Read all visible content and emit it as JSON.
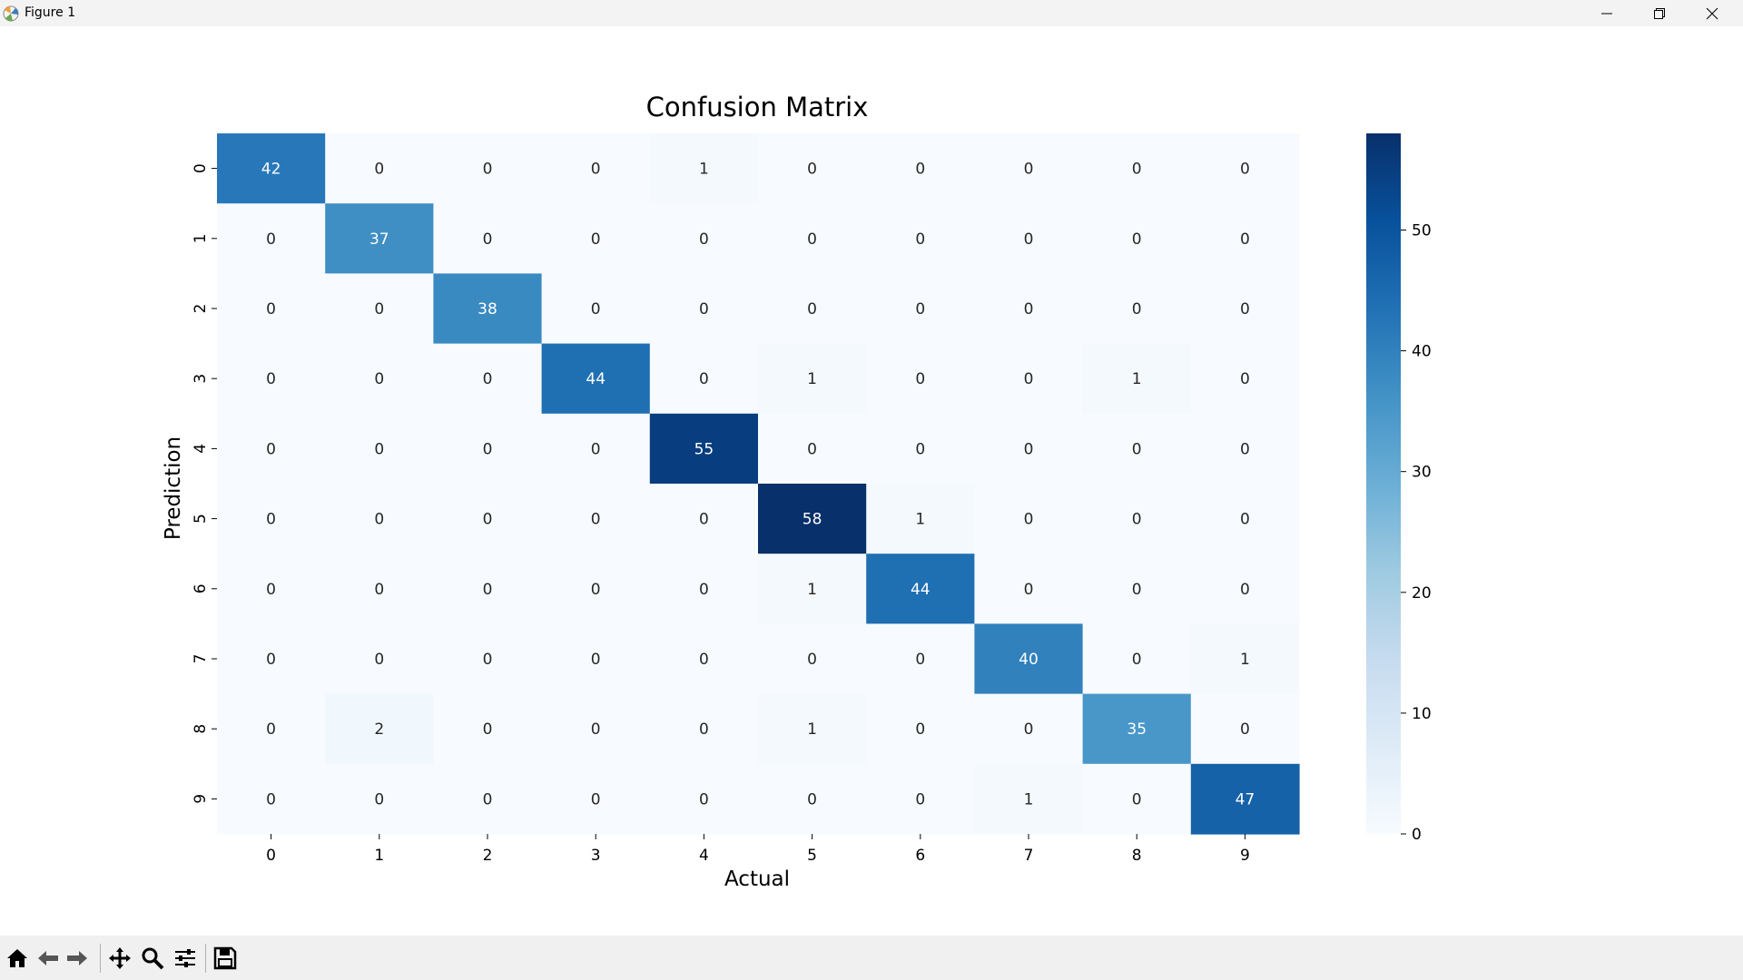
{
  "window": {
    "title": "Figure 1",
    "icons": [
      "matplotlib-icon",
      "minimize-icon",
      "restore-icon",
      "close-icon"
    ]
  },
  "toolbar": {
    "icons": [
      "home-icon",
      "back-arrow-icon",
      "forward-arrow-icon",
      "pan-icon",
      "zoom-icon",
      "configure-subplots-icon",
      "save-icon"
    ]
  },
  "chart_data": {
    "type": "heatmap",
    "title": "Confusion Matrix",
    "xlabel": "Actual",
    "ylabel": "Prediction",
    "x_categories": [
      "0",
      "1",
      "2",
      "3",
      "4",
      "5",
      "6",
      "7",
      "8",
      "9"
    ],
    "y_categories": [
      "0",
      "1",
      "2",
      "3",
      "4",
      "5",
      "6",
      "7",
      "8",
      "9"
    ],
    "values": [
      [
        42,
        0,
        0,
        0,
        1,
        0,
        0,
        0,
        0,
        0
      ],
      [
        0,
        37,
        0,
        0,
        0,
        0,
        0,
        0,
        0,
        0
      ],
      [
        0,
        0,
        38,
        0,
        0,
        0,
        0,
        0,
        0,
        0
      ],
      [
        0,
        0,
        0,
        44,
        0,
        1,
        0,
        0,
        1,
        0
      ],
      [
        0,
        0,
        0,
        0,
        55,
        0,
        0,
        0,
        0,
        0
      ],
      [
        0,
        0,
        0,
        0,
        0,
        58,
        1,
        0,
        0,
        0
      ],
      [
        0,
        0,
        0,
        0,
        0,
        1,
        44,
        0,
        0,
        0
      ],
      [
        0,
        0,
        0,
        0,
        0,
        0,
        0,
        40,
        0,
        1
      ],
      [
        0,
        2,
        0,
        0,
        0,
        1,
        0,
        0,
        35,
        0
      ],
      [
        0,
        0,
        0,
        0,
        0,
        0,
        0,
        1,
        0,
        47
      ]
    ],
    "colormap": "Blues",
    "vmin": 0,
    "vmax": 58,
    "colorbar_ticks": [
      "0",
      "10",
      "20",
      "30",
      "40",
      "50"
    ],
    "legend": "colorbar-right",
    "grid": false
  }
}
